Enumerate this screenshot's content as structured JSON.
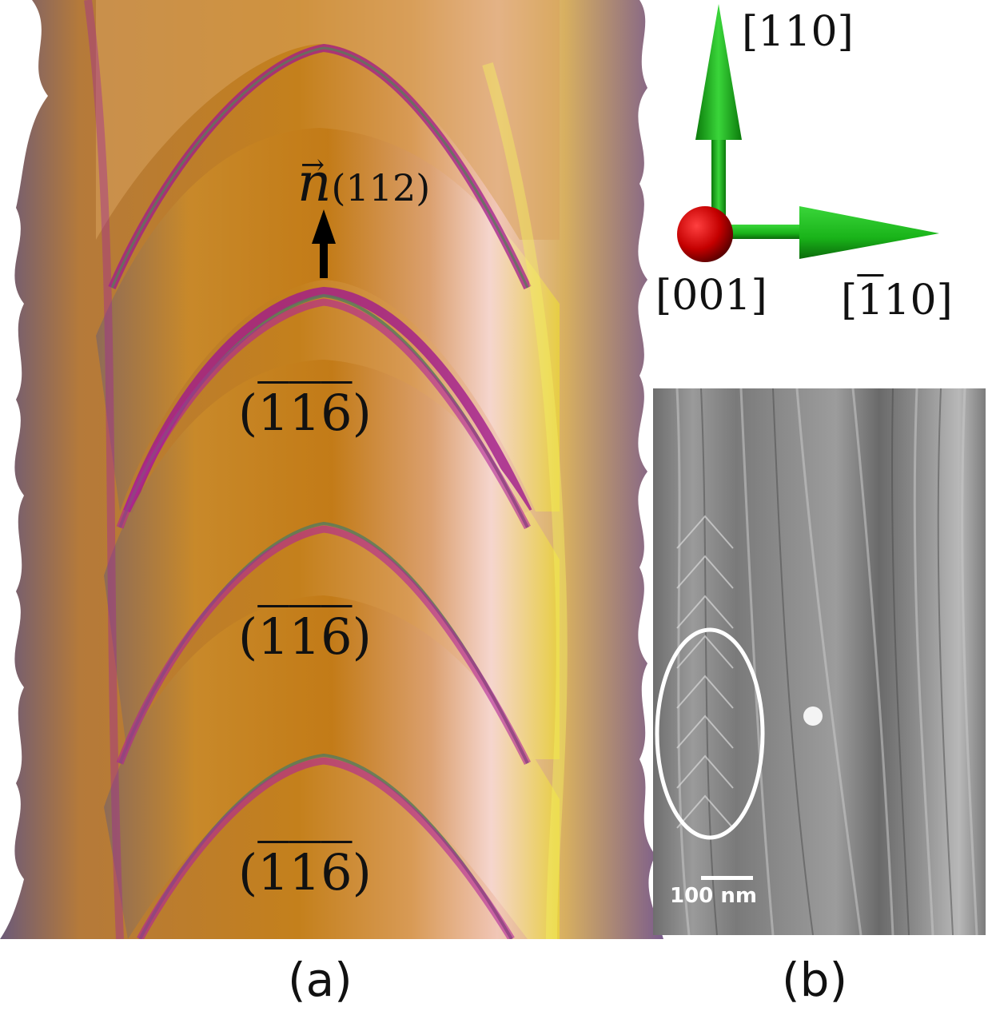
{
  "panel_a": {
    "normal_symbol": "n",
    "normal_subscript": "(112)",
    "facet_labels": [
      {
        "open": "(",
        "d1": "1",
        "d2": "1",
        "d3": "6",
        "close": ")"
      },
      {
        "open": "(",
        "d1": "1",
        "d2": "1",
        "d3": "6",
        "close": ")"
      },
      {
        "open": "(",
        "d1": "1",
        "d2": "1",
        "d3": "6",
        "close": ")"
      }
    ],
    "caption": "(a)"
  },
  "axes": {
    "up_label": "[110]",
    "out_label": "[001]",
    "right_open": "[",
    "right_bar_digit": "1",
    "right_rest": "10]",
    "colors": {
      "arrow": "#19b319",
      "sphere": "#d40000"
    }
  },
  "panel_b": {
    "scale_bar_label": "100 nm",
    "caption": "(b)"
  }
}
